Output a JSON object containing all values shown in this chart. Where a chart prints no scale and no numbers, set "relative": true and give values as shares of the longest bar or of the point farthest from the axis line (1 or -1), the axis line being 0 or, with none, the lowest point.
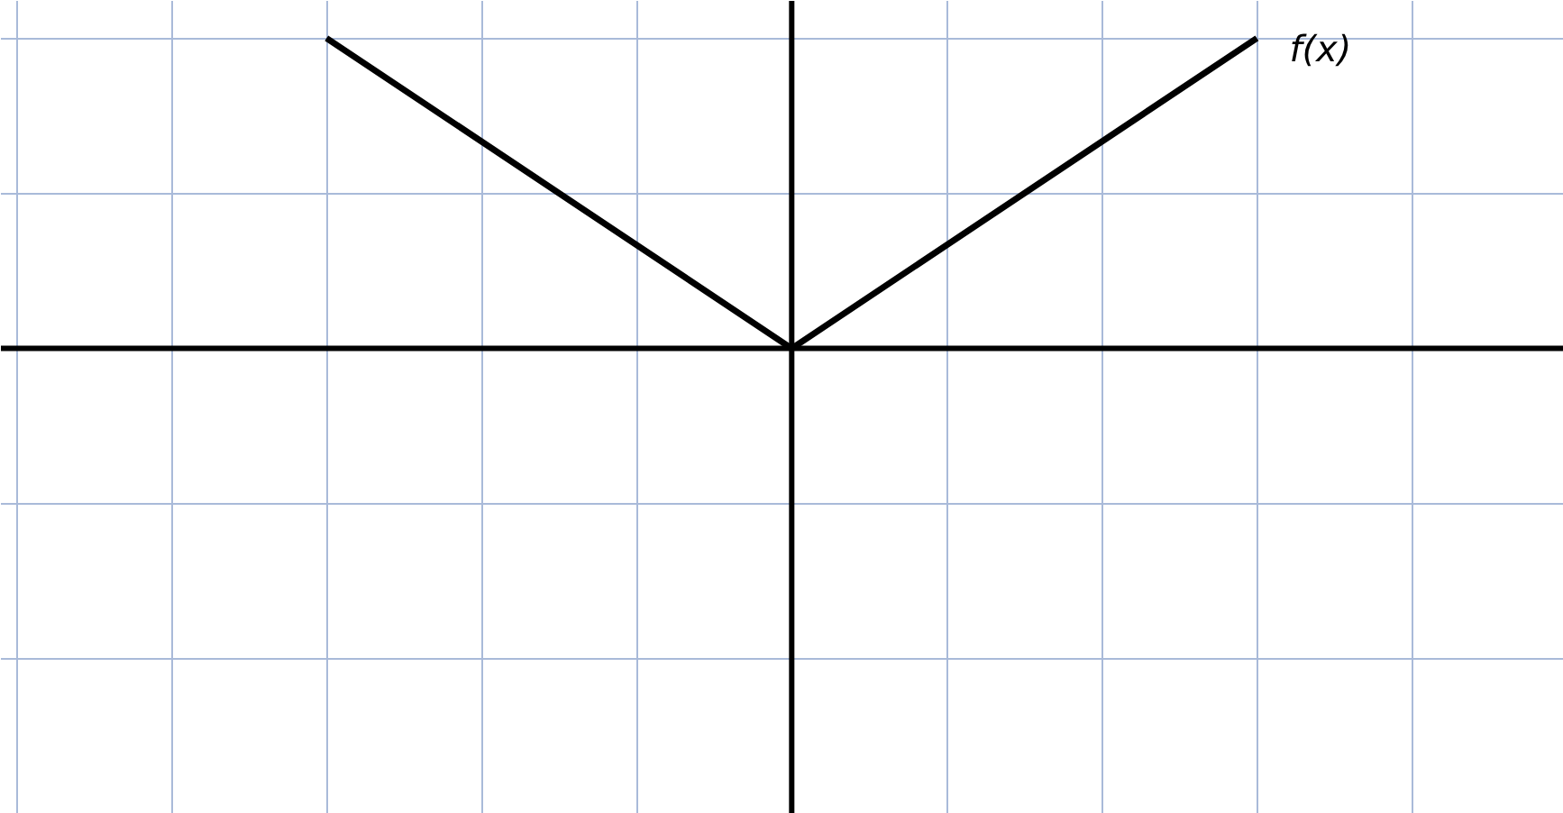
{
  "chart_data": {
    "type": "line",
    "relative": true,
    "categories": [
      null,
      null,
      null
    ],
    "series": [
      {
        "name": "f(x)",
        "color": "#000000",
        "values": [
          1,
          0,
          1
        ]
      }
    ],
    "grid": true,
    "marker": "none",
    "line_style": "solid"
  }
}
